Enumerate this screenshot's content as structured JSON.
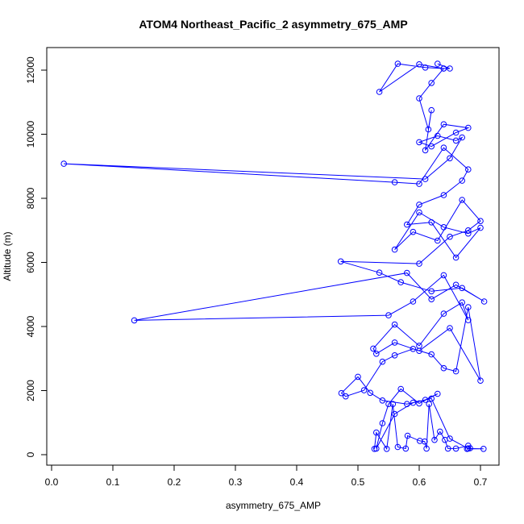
{
  "chart_data": {
    "type": "line",
    "title": "ATOM4 Northeast_Pacific_2 asymmetry_675_AMP",
    "xlabel": "asymmetry_675_AMP",
    "ylabel": "Altitude (m)",
    "xlim": [
      0.0,
      0.72
    ],
    "ylim": [
      0,
      12600
    ],
    "xticks": [
      0.0,
      0.1,
      0.2,
      0.3,
      0.4,
      0.5,
      0.6,
      0.7
    ],
    "xtick_labels": [
      "0.0",
      "0.1",
      "0.2",
      "0.3",
      "0.4",
      "0.5",
      "0.6",
      "0.7"
    ],
    "yticks": [
      0,
      2000,
      4000,
      6000,
      8000,
      10000,
      12000
    ],
    "ytick_labels": [
      "0",
      "2000",
      "4000",
      "6000",
      "8000",
      "10000",
      "12000"
    ],
    "grid": false,
    "series_color": "#0000ff",
    "marker": "open-circle",
    "series": [
      {
        "x": [
          0.527,
          0.53,
          0.547,
          0.557,
          0.565,
          0.578,
          0.581,
          0.601,
          0.609,
          0.612,
          0.616,
          0.625,
          0.634,
          0.642,
          0.647,
          0.66,
          0.68,
          0.683,
          0.678,
          0.705,
          0.68,
          0.65,
          0.62,
          0.59,
          0.56,
          0.53,
          0.54,
          0.55,
          0.57,
          0.6,
          0.63,
          0.61,
          0.58,
          0.54,
          0.52,
          0.5,
          0.473,
          0.48,
          0.51,
          0.54,
          0.56,
          0.59,
          0.62,
          0.64,
          0.66,
          0.68,
          0.7,
          0.65,
          0.6,
          0.56,
          0.53,
          0.525,
          0.56,
          0.6,
          0.64,
          0.67,
          0.68,
          0.64,
          0.59,
          0.55,
          0.135,
          0.58,
          0.62,
          0.66,
          0.706,
          0.67,
          0.62,
          0.57,
          0.535,
          0.472,
          0.6,
          0.65,
          0.68,
          0.7,
          0.67,
          0.63,
          0.59,
          0.56,
          0.6,
          0.64,
          0.68,
          0.7,
          0.66,
          0.62,
          0.58,
          0.6,
          0.64,
          0.67,
          0.68,
          0.64,
          0.6,
          0.56,
          0.02,
          0.61,
          0.65,
          0.67,
          0.66,
          0.63,
          0.6,
          0.62,
          0.66,
          0.68,
          0.64,
          0.61,
          0.62,
          0.615,
          0.6,
          0.62,
          0.64,
          0.6,
          0.535,
          0.565,
          0.61,
          0.64,
          0.65,
          0.63
        ],
        "y": [
          180,
          690,
          180,
          1580,
          240,
          190,
          590,
          430,
          410,
          190,
          1580,
          460,
          720,
          460,
          190,
          190,
          280,
          200,
          180,
          180,
          190,
          500,
          1750,
          1620,
          1270,
          190,
          980,
          1580,
          2050,
          1600,
          1900,
          1710,
          1580,
          1690,
          1930,
          2430,
          1920,
          1820,
          2010,
          2900,
          3100,
          3300,
          3130,
          2700,
          2600,
          4600,
          2310,
          3950,
          3240,
          3500,
          3150,
          3310,
          4060,
          3400,
          4400,
          4750,
          4200,
          5600,
          4780,
          4350,
          4190,
          5670,
          4850,
          5300,
          4780,
          5200,
          5100,
          5380,
          5680,
          6030,
          5960,
          6800,
          7000,
          7290,
          7950,
          6680,
          6950,
          6400,
          7560,
          7100,
          6900,
          7080,
          6150,
          7250,
          7180,
          7800,
          8100,
          8550,
          8900,
          9580,
          8450,
          8500,
          9080,
          8600,
          9250,
          9900,
          9800,
          9950,
          9750,
          9620,
          10050,
          10200,
          10310,
          9500,
          10750,
          10150,
          11120,
          11600,
          12050,
          12180,
          11320,
          12200,
          12080,
          12050,
          12050,
          12200
        ]
      }
    ]
  }
}
